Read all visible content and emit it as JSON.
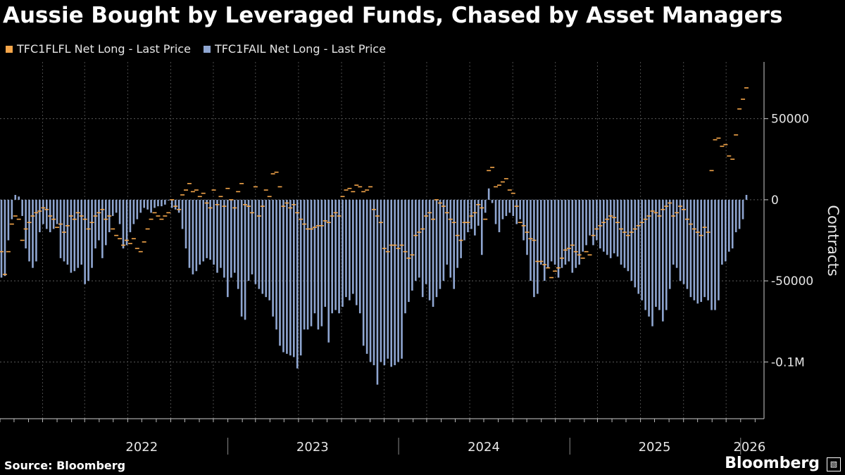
{
  "title": "Aussie Bought by Leveraged Funds, Chased by Asset Managers",
  "legend": [
    {
      "label": "TFC1FLFL Net Long - Last Price",
      "color": "#f5a64a"
    },
    {
      "label": "TFC1FAIL Net Long - Last Price",
      "color": "#8fa6d1"
    }
  ],
  "source": "Source: Bloomberg",
  "brand": "Bloomberg",
  "chart_data": {
    "type": "bar",
    "ylabel": "Contracts",
    "ylim": [
      -135000,
      85000
    ],
    "yticks": [
      {
        "value": 50000,
        "label": "50000"
      },
      {
        "value": 0,
        "label": "0"
      },
      {
        "value": -50000,
        "label": "-50000"
      },
      {
        "value": -100000,
        "label": "-0.1M"
      }
    ],
    "xlim": [
      "2021-09-01",
      "2026-02-20"
    ],
    "year_labels": [
      {
        "label": "2022",
        "date": "2022-07-01"
      },
      {
        "label": "2023",
        "date": "2023-07-01"
      },
      {
        "label": "2024",
        "date": "2024-07-01"
      },
      {
        "label": "2025",
        "date": "2025-07-01"
      },
      {
        "label": "2026",
        "date": "2026-01-20"
      }
    ],
    "year_boundaries": [
      "2023-01-01",
      "2024-01-01",
      "2025-01-01",
      "2026-01-01"
    ],
    "grid": true,
    "legend_position": "top-left",
    "series": [
      {
        "name": "TFC1FAIL Net Long - Last Price",
        "color": "#8fa6d1",
        "kind": "bar",
        "values": [
          -48000,
          -47000,
          -25000,
          -12000,
          3000,
          2000,
          -10000,
          -30000,
          -38000,
          -42000,
          -38000,
          -20000,
          -15000,
          -18000,
          -20000,
          -18000,
          -15000,
          -36000,
          -38000,
          -40000,
          -45000,
          -44000,
          -42000,
          -40000,
          -52000,
          -50000,
          -42000,
          -30000,
          -25000,
          -36000,
          -28000,
          -20000,
          -10000,
          -8000,
          -15000,
          -30000,
          -28000,
          -20000,
          -15000,
          -12000,
          -8000,
          -5000,
          -6000,
          -8000,
          -5000,
          -4000,
          -4000,
          -3000,
          0,
          -5000,
          -6000,
          -8000,
          -18000,
          -30000,
          -42000,
          -46000,
          -44000,
          -40000,
          -38000,
          -36000,
          -37000,
          -40000,
          -45000,
          -42000,
          -48000,
          -60000,
          -48000,
          -45000,
          -55000,
          -72000,
          -74000,
          -50000,
          -46000,
          -52000,
          -55000,
          -58000,
          -60000,
          -62000,
          -72000,
          -80000,
          -90000,
          -94000,
          -95000,
          -96000,
          -97000,
          -104000,
          -96000,
          -80000,
          -80000,
          -78000,
          -70000,
          -80000,
          -78000,
          -66000,
          -88000,
          -70000,
          -68000,
          -70000,
          -66000,
          -60000,
          -62000,
          -58000,
          -65000,
          -70000,
          -90000,
          -95000,
          -100000,
          -102000,
          -114000,
          -100000,
          -102000,
          -98000,
          -103000,
          -102000,
          -100000,
          -98000,
          -70000,
          -63000,
          -56000,
          -50000,
          -48000,
          -60000,
          -52000,
          -62000,
          -66000,
          -60000,
          -55000,
          -50000,
          -40000,
          -48000,
          -55000,
          -42000,
          -36000,
          -25000,
          -20000,
          -18000,
          -22000,
          -16000,
          -34000,
          -8000,
          7000,
          -2000,
          -15000,
          -20000,
          -12000,
          -10000,
          -8000,
          -10000,
          -15000,
          -12000,
          -25000,
          -34000,
          -50000,
          -60000,
          -58000,
          -40000,
          -50000,
          -42000,
          -38000,
          -40000,
          -48000,
          -42000,
          -40000,
          -38000,
          -45000,
          -42000,
          -40000,
          -32000,
          -28000,
          -22000,
          -28000,
          -25000,
          -30000,
          -32000,
          -34000,
          -36000,
          -33000,
          -35000,
          -40000,
          -42000,
          -44000,
          -50000,
          -54000,
          -58000,
          -62000,
          -68000,
          -72000,
          -78000,
          -66000,
          -68000,
          -75000,
          -68000,
          -55000,
          -40000,
          -42000,
          -50000,
          -52000,
          -55000,
          -60000,
          -62000,
          -64000,
          -63000,
          -60000,
          -62000,
          -68000,
          -68000,
          -62000,
          -40000,
          -38000,
          -32000,
          -30000,
          -20000,
          -18000,
          -12000,
          3000
        ]
      },
      {
        "name": "TFC1FLFL Net Long - Last Price",
        "color": "#f5a64a",
        "kind": "dash",
        "values": [
          -32000,
          -46000,
          -32000,
          -15000,
          -10000,
          -12000,
          -25000,
          -18000,
          -14000,
          -10000,
          -8000,
          -7000,
          -5000,
          -6000,
          -10000,
          -12000,
          -17000,
          -15000,
          -20000,
          -16000,
          -10000,
          -12000,
          -8000,
          -10000,
          -12000,
          -18000,
          -14000,
          -10000,
          -8000,
          -6000,
          -12000,
          -10000,
          -18000,
          -22000,
          -24000,
          -28000,
          -25000,
          -27000,
          -24000,
          -30000,
          -32000,
          -26000,
          -18000,
          -12000,
          -8000,
          -10000,
          -12000,
          -10000,
          -8000,
          0,
          -4000,
          -6000,
          3000,
          6000,
          10000,
          5000,
          6000,
          2000,
          4000,
          -2000,
          -5000,
          6000,
          -3000,
          2000,
          -4000,
          7000,
          0,
          -5000,
          5000,
          10000,
          -3000,
          -4000,
          -8000,
          8000,
          -10000,
          -4000,
          6000,
          2000,
          16000,
          17000,
          8000,
          -4000,
          -2000,
          -5000,
          -3000,
          -8000,
          -12000,
          -15000,
          -18000,
          -18000,
          -17000,
          -16000,
          -16000,
          -13000,
          -14000,
          -10000,
          -8000,
          -10000,
          2000,
          6000,
          7000,
          5000,
          9000,
          8000,
          5000,
          6000,
          8000,
          -6000,
          -10000,
          -14000,
          -30000,
          -32000,
          -28000,
          -28000,
          -30000,
          -28000,
          -32000,
          -36000,
          -34000,
          -22000,
          -20000,
          -18000,
          -10000,
          -8000,
          -12000,
          0,
          -2000,
          -4000,
          -8000,
          -12000,
          -14000,
          -22000,
          -25000,
          -14000,
          -14000,
          -10000,
          -8000,
          -3000,
          -5000,
          -12000,
          18000,
          20000,
          8000,
          9000,
          11000,
          13000,
          6000,
          4000,
          -4000,
          -14000,
          -16000,
          -20000,
          -24000,
          -25000,
          -38000,
          -38000,
          -40000,
          -42000,
          -48000,
          -44000,
          -42000,
          -36000,
          -31000,
          -30000,
          -28000,
          -32000,
          -34000,
          -36000,
          -32000,
          -34000,
          -22000,
          -18000,
          -16000,
          -14000,
          -12000,
          -10000,
          -11000,
          -14000,
          -18000,
          -20000,
          -22000,
          -20000,
          -18000,
          -16000,
          -14000,
          -12000,
          -10000,
          -7000,
          -8000,
          -10000,
          -6000,
          -4000,
          -2000,
          -10000,
          -8000,
          -4000,
          -6000,
          -12000,
          -15000,
          -18000,
          -20000,
          -22000,
          -17000,
          -20000,
          18000,
          37000,
          38000,
          33000,
          34000,
          27000,
          25000,
          40000,
          56000,
          62000,
          69000
        ]
      }
    ]
  }
}
